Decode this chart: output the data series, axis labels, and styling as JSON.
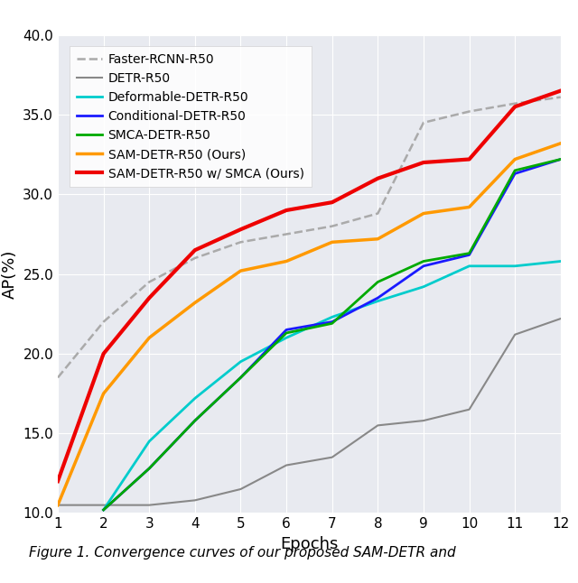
{
  "epochs": [
    1,
    2,
    3,
    4,
    5,
    6,
    7,
    8,
    9,
    10,
    11,
    12
  ],
  "faster_rcnn": [
    18.5,
    22.0,
    24.5,
    26.0,
    27.0,
    27.5,
    28.0,
    28.8,
    34.5,
    35.2,
    35.7,
    36.1
  ],
  "detr": [
    10.5,
    10.5,
    10.5,
    10.8,
    11.5,
    13.0,
    13.5,
    15.5,
    15.8,
    16.5,
    21.2,
    22.2
  ],
  "deformable_detr": [
    null,
    10.2,
    14.5,
    17.2,
    19.5,
    21.0,
    22.3,
    23.3,
    24.2,
    25.5,
    25.5,
    25.8
  ],
  "conditional_detr": [
    null,
    10.2,
    12.8,
    15.8,
    18.5,
    21.5,
    22.0,
    23.5,
    25.5,
    26.2,
    31.3,
    32.2
  ],
  "smca_detr": [
    null,
    10.2,
    12.8,
    15.8,
    18.5,
    21.3,
    21.9,
    24.5,
    25.8,
    26.3,
    31.5,
    32.2
  ],
  "sam_detr": [
    10.5,
    17.5,
    21.0,
    23.2,
    25.2,
    25.8,
    27.0,
    27.2,
    28.8,
    29.2,
    32.2,
    33.2
  ],
  "sam_detr_smca": [
    12.0,
    20.0,
    23.5,
    26.5,
    27.8,
    29.0,
    29.5,
    31.0,
    32.0,
    32.2,
    35.5,
    36.5
  ],
  "colors": {
    "faster_rcnn": "#aaaaaa",
    "detr": "#888888",
    "deformable_detr": "#00cccc",
    "conditional_detr": "#1a1aff",
    "smca_detr": "#00aa00",
    "sam_detr": "#ff9900",
    "sam_detr_smca": "#ee0000"
  },
  "ylabel": "AP(%)",
  "xlabel": "Epochs",
  "ylim": [
    10.0,
    40.0
  ],
  "xlim": [
    1,
    12
  ],
  "yticks": [
    10.0,
    15.0,
    20.0,
    25.0,
    30.0,
    35.0,
    40.0
  ],
  "xticks": [
    1,
    2,
    3,
    4,
    5,
    6,
    7,
    8,
    9,
    10,
    11,
    12
  ],
  "bg_color": "#e8eaf0",
  "legend_labels": [
    "Faster-RCNN-R50",
    "DETR-R50",
    "Deformable-DETR-R50",
    "Conditional-DETR-R50",
    "SMCA-DETR-R50",
    "SAM-DETR-R50 (Ours)",
    "SAM-DETR-R50 w/ SMCA (Ours)"
  ],
  "caption": "Figure 1. Convergence curves of our proposed SAM-DETR and"
}
